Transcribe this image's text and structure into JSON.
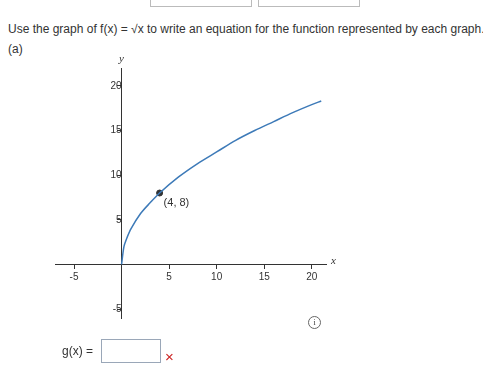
{
  "question": "Use the graph of f(x) = √x to write an equation for the function represented by each graph.",
  "part": "(a)",
  "answer_label": "g(x) =",
  "answer_status": "×",
  "info_icon": "i",
  "chart_data": {
    "type": "line",
    "x": [
      0,
      0.25,
      0.5,
      1,
      2,
      3,
      4,
      6,
      8,
      10,
      12,
      14,
      16,
      18,
      20,
      21
    ],
    "values": [
      0,
      2,
      2.8,
      4,
      5.7,
      6.9,
      8,
      9.8,
      11.3,
      12.6,
      13.9,
      15,
      16,
      17,
      17.9,
      18.3
    ],
    "color": "#3d7ab8",
    "xlim": [
      -7,
      21.5
    ],
    "ylim": [
      -6,
      22
    ],
    "xticks": [
      -5,
      5,
      10,
      15,
      20
    ],
    "yticks": [
      -5,
      5,
      10,
      15,
      20
    ],
    "x_label": "x",
    "y_label": "y",
    "grid": false,
    "annotations": [
      {
        "x": 4,
        "y": 8,
        "text": "(4, 8)"
      }
    ]
  }
}
